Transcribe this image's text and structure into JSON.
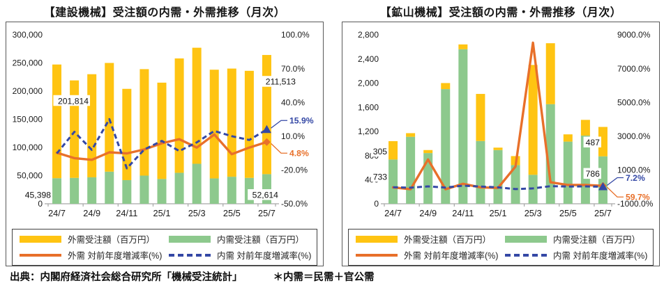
{
  "colors": {
    "yellow": "#FFC412",
    "green": "#8DC98D",
    "orange": "#E8702A",
    "blue": "#3448A5",
    "axis_text": "#1a1a1a",
    "border": "#595959"
  },
  "legend": {
    "items": [
      {
        "key": "gaiju_bar",
        "swatch": "bar",
        "color": "yellow",
        "label": "外需受注額（百万円）"
      },
      {
        "key": "naiju_bar",
        "swatch": "bar",
        "color": "green",
        "label": "内需受注額（百万円）"
      },
      {
        "key": "gaiju_rate",
        "swatch": "line",
        "color": "orange",
        "label": "外需 対前年度増減率(%)"
      },
      {
        "key": "naiju_rate",
        "swatch": "dash",
        "color": "blue",
        "label": "内需 対前年度増減率(%)"
      }
    ]
  },
  "footer": {
    "source": "出典：内閣府経済社会総合研究所「機械受注統計」",
    "note": "＊内需＝民需＋官公需"
  },
  "chart_data": [
    {
      "type": "bar",
      "title": "【建設機械】受注額の内需・外需推移（月次）",
      "subtype": "stacked-bar-with-lines",
      "grid": false,
      "legend_position": "bottom-box",
      "categories": [
        "24/7",
        "24/8",
        "24/9",
        "24/10",
        "24/11",
        "24/12",
        "25/1",
        "25/2",
        "25/3",
        "25/4",
        "25/5",
        "25/6",
        "25/7"
      ],
      "x_tick_labels": [
        "24/7",
        "24/9",
        "24/11",
        "25/1",
        "25/3",
        "25/5",
        "25/7"
      ],
      "left_axis": {
        "min": 0,
        "max": 300000,
        "ticks": [
          {
            "value": 0,
            "label": "0"
          },
          {
            "value": 50000,
            "label": "50,000"
          },
          {
            "value": 100000,
            "label": "100,000"
          },
          {
            "value": 150000,
            "label": "150,000"
          },
          {
            "value": 200000,
            "label": "200,000"
          },
          {
            "value": 250000,
            "label": "250,000"
          },
          {
            "value": 300000,
            "label": "300,000"
          }
        ]
      },
      "right_axis": {
        "min": -50,
        "max": 100,
        "ticks": [
          {
            "value": -50,
            "label": "-50.0%"
          },
          {
            "value": -20,
            "label": "-20.0%"
          },
          {
            "value": 10,
            "label": "10.0%"
          },
          {
            "value": 40,
            "label": "40.0%"
          },
          {
            "value": 70,
            "label": "70.0%"
          },
          {
            "value": 100,
            "label": "100.0%"
          }
        ]
      },
      "series_bars": {
        "naiju": {
          "name": "内需受注額（百万円）",
          "color": "green",
          "values": [
            45398,
            46000,
            47000,
            57000,
            42000,
            50000,
            44000,
            55000,
            71000,
            45000,
            48000,
            46000,
            52614
          ]
        },
        "gaiju": {
          "name": "外需受注額（百万円）",
          "color": "yellow",
          "values": [
            201814,
            173000,
            183000,
            193000,
            162000,
            189000,
            171000,
            203000,
            206000,
            193000,
            192000,
            190000,
            211513
          ]
        }
      },
      "series_lines": {
        "gaiju_rate": {
          "name": "外需 対前年度増減率(%)",
          "color": "orange",
          "style": "solid",
          "values": [
            -4.7,
            -9.5,
            -11.0,
            -4.3,
            -5.3,
            -1.8,
            3.7,
            7.3,
            -0.1,
            11.5,
            -6.0,
            -0.1,
            4.8
          ]
        },
        "naiju_rate": {
          "name": "内需 対前年度増減率(%)",
          "color": "blue",
          "style": "dashed",
          "values": [
            -5.3,
            13.8,
            -2.2,
            25.1,
            -18.6,
            -1.8,
            5.8,
            -3.2,
            4.5,
            14.6,
            10.0,
            6.6,
            15.9
          ]
        }
      },
      "annotations": {
        "bar_labels": [
          {
            "text": "201,814",
            "bar": 0,
            "series": "gaiju",
            "at_value": 183000,
            "dx": 58
          },
          {
            "text": "45,398",
            "bar": 0,
            "series": "naiju",
            "at_value": 16000,
            "dx": 4
          },
          {
            "text": "211,513",
            "bar": 12,
            "series": "gaiju",
            "at_value": 217000,
            "dx": 54
          },
          {
            "text": "52,614",
            "bar": 12,
            "series": "naiju",
            "at_value": 16000,
            "dx": 29
          }
        ],
        "callouts": [
          {
            "text": "15.9%",
            "series": "naiju_rate",
            "position": "above"
          },
          {
            "text": "4.8%",
            "series": "gaiju_rate",
            "position": "below"
          }
        ]
      }
    },
    {
      "type": "bar",
      "title": "【鉱山機械】受注額の内需・外需推移（月次）",
      "subtype": "stacked-bar-with-lines",
      "grid": false,
      "legend_position": "bottom-box",
      "categories": [
        "24/7",
        "24/8",
        "24/9",
        "24/10",
        "24/11",
        "24/12",
        "25/1",
        "25/2",
        "25/3",
        "25/4",
        "25/5",
        "25/6",
        "25/7"
      ],
      "x_tick_labels": [
        "24/7",
        "24/9",
        "24/11",
        "25/1",
        "25/3",
        "25/5",
        "25/7"
      ],
      "left_axis": {
        "min": 0,
        "max": 2800,
        "ticks": [
          {
            "value": 0,
            "label": "0"
          },
          {
            "value": 400,
            "label": "400"
          },
          {
            "value": 800,
            "label": "800"
          },
          {
            "value": 1200,
            "label": "1,200"
          },
          {
            "value": 1600,
            "label": "1,600"
          },
          {
            "value": 2000,
            "label": "2,000"
          },
          {
            "value": 2400,
            "label": "2,400"
          },
          {
            "value": 2800,
            "label": "2,800"
          }
        ]
      },
      "right_axis": {
        "min": -1000,
        "max": 9000,
        "ticks": [
          {
            "value": -1000,
            "label": "-1000.0%"
          },
          {
            "value": 1000,
            "label": "1000.0%"
          },
          {
            "value": 3000,
            "label": "3000.0%"
          },
          {
            "value": 5000,
            "label": "5000.0%"
          },
          {
            "value": 7000,
            "label": "7000.0%"
          },
          {
            "value": 9000,
            "label": "9000.0%"
          }
        ]
      },
      "series_bars": {
        "naiju": {
          "name": "内需受注額（百万円）",
          "color": "green",
          "values": [
            733,
            1110,
            840,
            1900,
            2560,
            1040,
            890,
            640,
            480,
            1650,
            1030,
            1130,
            786
          ]
        },
        "gaiju": {
          "name": "外需受注額（百万円）",
          "color": "yellow",
          "values": [
            305,
            60,
            50,
            100,
            80,
            780,
            40,
            150,
            1820,
            1010,
            120,
            260,
            487
          ]
        }
      },
      "series_lines": {
        "gaiju_rate": {
          "name": "外需 対前年度増減率(%)",
          "color": "orange",
          "style": "solid",
          "values": [
            -30,
            -140,
            1620,
            -140,
            180,
            -30,
            -60,
            1200,
            8530,
            270,
            110,
            110,
            59.7
          ]
        },
        "naiju_rate": {
          "name": "内需 対前年度増減率(%)",
          "color": "blue",
          "style": "dashed",
          "values": [
            -20,
            -50,
            30,
            -40,
            70,
            20,
            -30,
            -130,
            -90,
            40,
            20,
            30,
            7.2
          ]
        }
      },
      "annotations": {
        "bar_labels": [
          {
            "text": "305",
            "bar": 0,
            "series": "gaiju",
            "at_value": 870,
            "dx": 4
          },
          {
            "text": "733",
            "bar": 0,
            "series": "naiju",
            "at_value": 450,
            "dx": 4
          },
          {
            "text": "487",
            "bar": 12,
            "series": "gaiju",
            "at_value": 1020,
            "dx": 8
          },
          {
            "text": "786",
            "bar": 12,
            "series": "naiju",
            "at_value": 500,
            "dx": 8
          }
        ],
        "callouts": [
          {
            "text": "7.2%",
            "series": "naiju_rate",
            "position": "above"
          },
          {
            "text": "59.7%",
            "series": "gaiju_rate",
            "position": "below"
          }
        ]
      }
    }
  ]
}
